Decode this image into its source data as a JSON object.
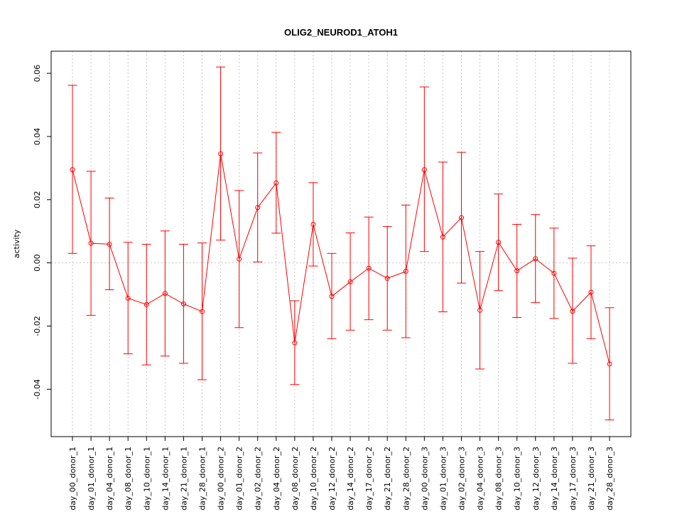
{
  "chart_data": {
    "type": "line",
    "title": "OLIG2_NEUROD1_ATOH1",
    "xlabel": "",
    "ylabel": "activity",
    "ylim": [
      -0.055,
      0.067
    ],
    "yticks": [
      -0.04,
      -0.02,
      0.0,
      0.02,
      0.04,
      0.06
    ],
    "ytick_labels": [
      "-0.04",
      "-0.02",
      "0.00",
      "0.02",
      "0.04",
      "0.06"
    ],
    "grid": true,
    "color": "#ff0000",
    "categories": [
      "day_00_donor_1",
      "day_01_donor_1",
      "day_04_donor_1",
      "day_08_donor_1",
      "day_10_donor_1",
      "day_14_donor_1",
      "day_21_donor_1",
      "day_28_donor_1",
      "day_00_donor_2",
      "day_01_donor_2",
      "day_02_donor_2",
      "day_04_donor_2",
      "day_08_donor_2",
      "day_10_donor_2",
      "day_12_donor_2",
      "day_14_donor_2",
      "day_17_donor_2",
      "day_21_donor_2",
      "day_28_donor_2",
      "day_00_donor_3",
      "day_01_donor_3",
      "day_02_donor_3",
      "day_04_donor_3",
      "day_08_donor_3",
      "day_10_donor_3",
      "day_12_donor_3",
      "day_14_donor_3",
      "day_17_donor_3",
      "day_21_donor_3",
      "day_28_donor_3"
    ],
    "series": [
      {
        "values": [
          0.0295,
          0.0062,
          0.0059,
          -0.0112,
          -0.0132,
          -0.0097,
          -0.013,
          -0.0154,
          0.0345,
          0.0012,
          0.0175,
          0.0253,
          -0.0253,
          0.0122,
          -0.0106,
          -0.006,
          -0.0017,
          -0.0049,
          -0.0027,
          0.0295,
          0.0082,
          0.0143,
          -0.015,
          0.0065,
          -0.0025,
          0.0013,
          -0.0033,
          -0.0153,
          -0.0093,
          -0.032
        ],
        "upper": [
          0.0562,
          0.029,
          0.0205,
          0.0065,
          0.0059,
          0.0101,
          0.0059,
          0.0063,
          0.062,
          0.0229,
          0.0348,
          0.0413,
          -0.012,
          0.0254,
          0.003,
          0.0095,
          0.0145,
          0.0115,
          0.0183,
          0.0557,
          0.0319,
          0.035,
          0.0036,
          0.0218,
          0.0122,
          0.0153,
          0.011,
          0.0015,
          0.0054,
          -0.0142
        ],
        "lower": [
          0.003,
          -0.0166,
          -0.0085,
          -0.0288,
          -0.0323,
          -0.0295,
          -0.0318,
          -0.037,
          0.0072,
          -0.0205,
          0.0003,
          0.0094,
          -0.0385,
          -0.001,
          -0.024,
          -0.0213,
          -0.018,
          -0.0213,
          -0.0237,
          0.0036,
          -0.0155,
          -0.0064,
          -0.0336,
          -0.0088,
          -0.0173,
          -0.0126,
          -0.0176,
          -0.0318,
          -0.024,
          -0.0497
        ]
      }
    ]
  }
}
